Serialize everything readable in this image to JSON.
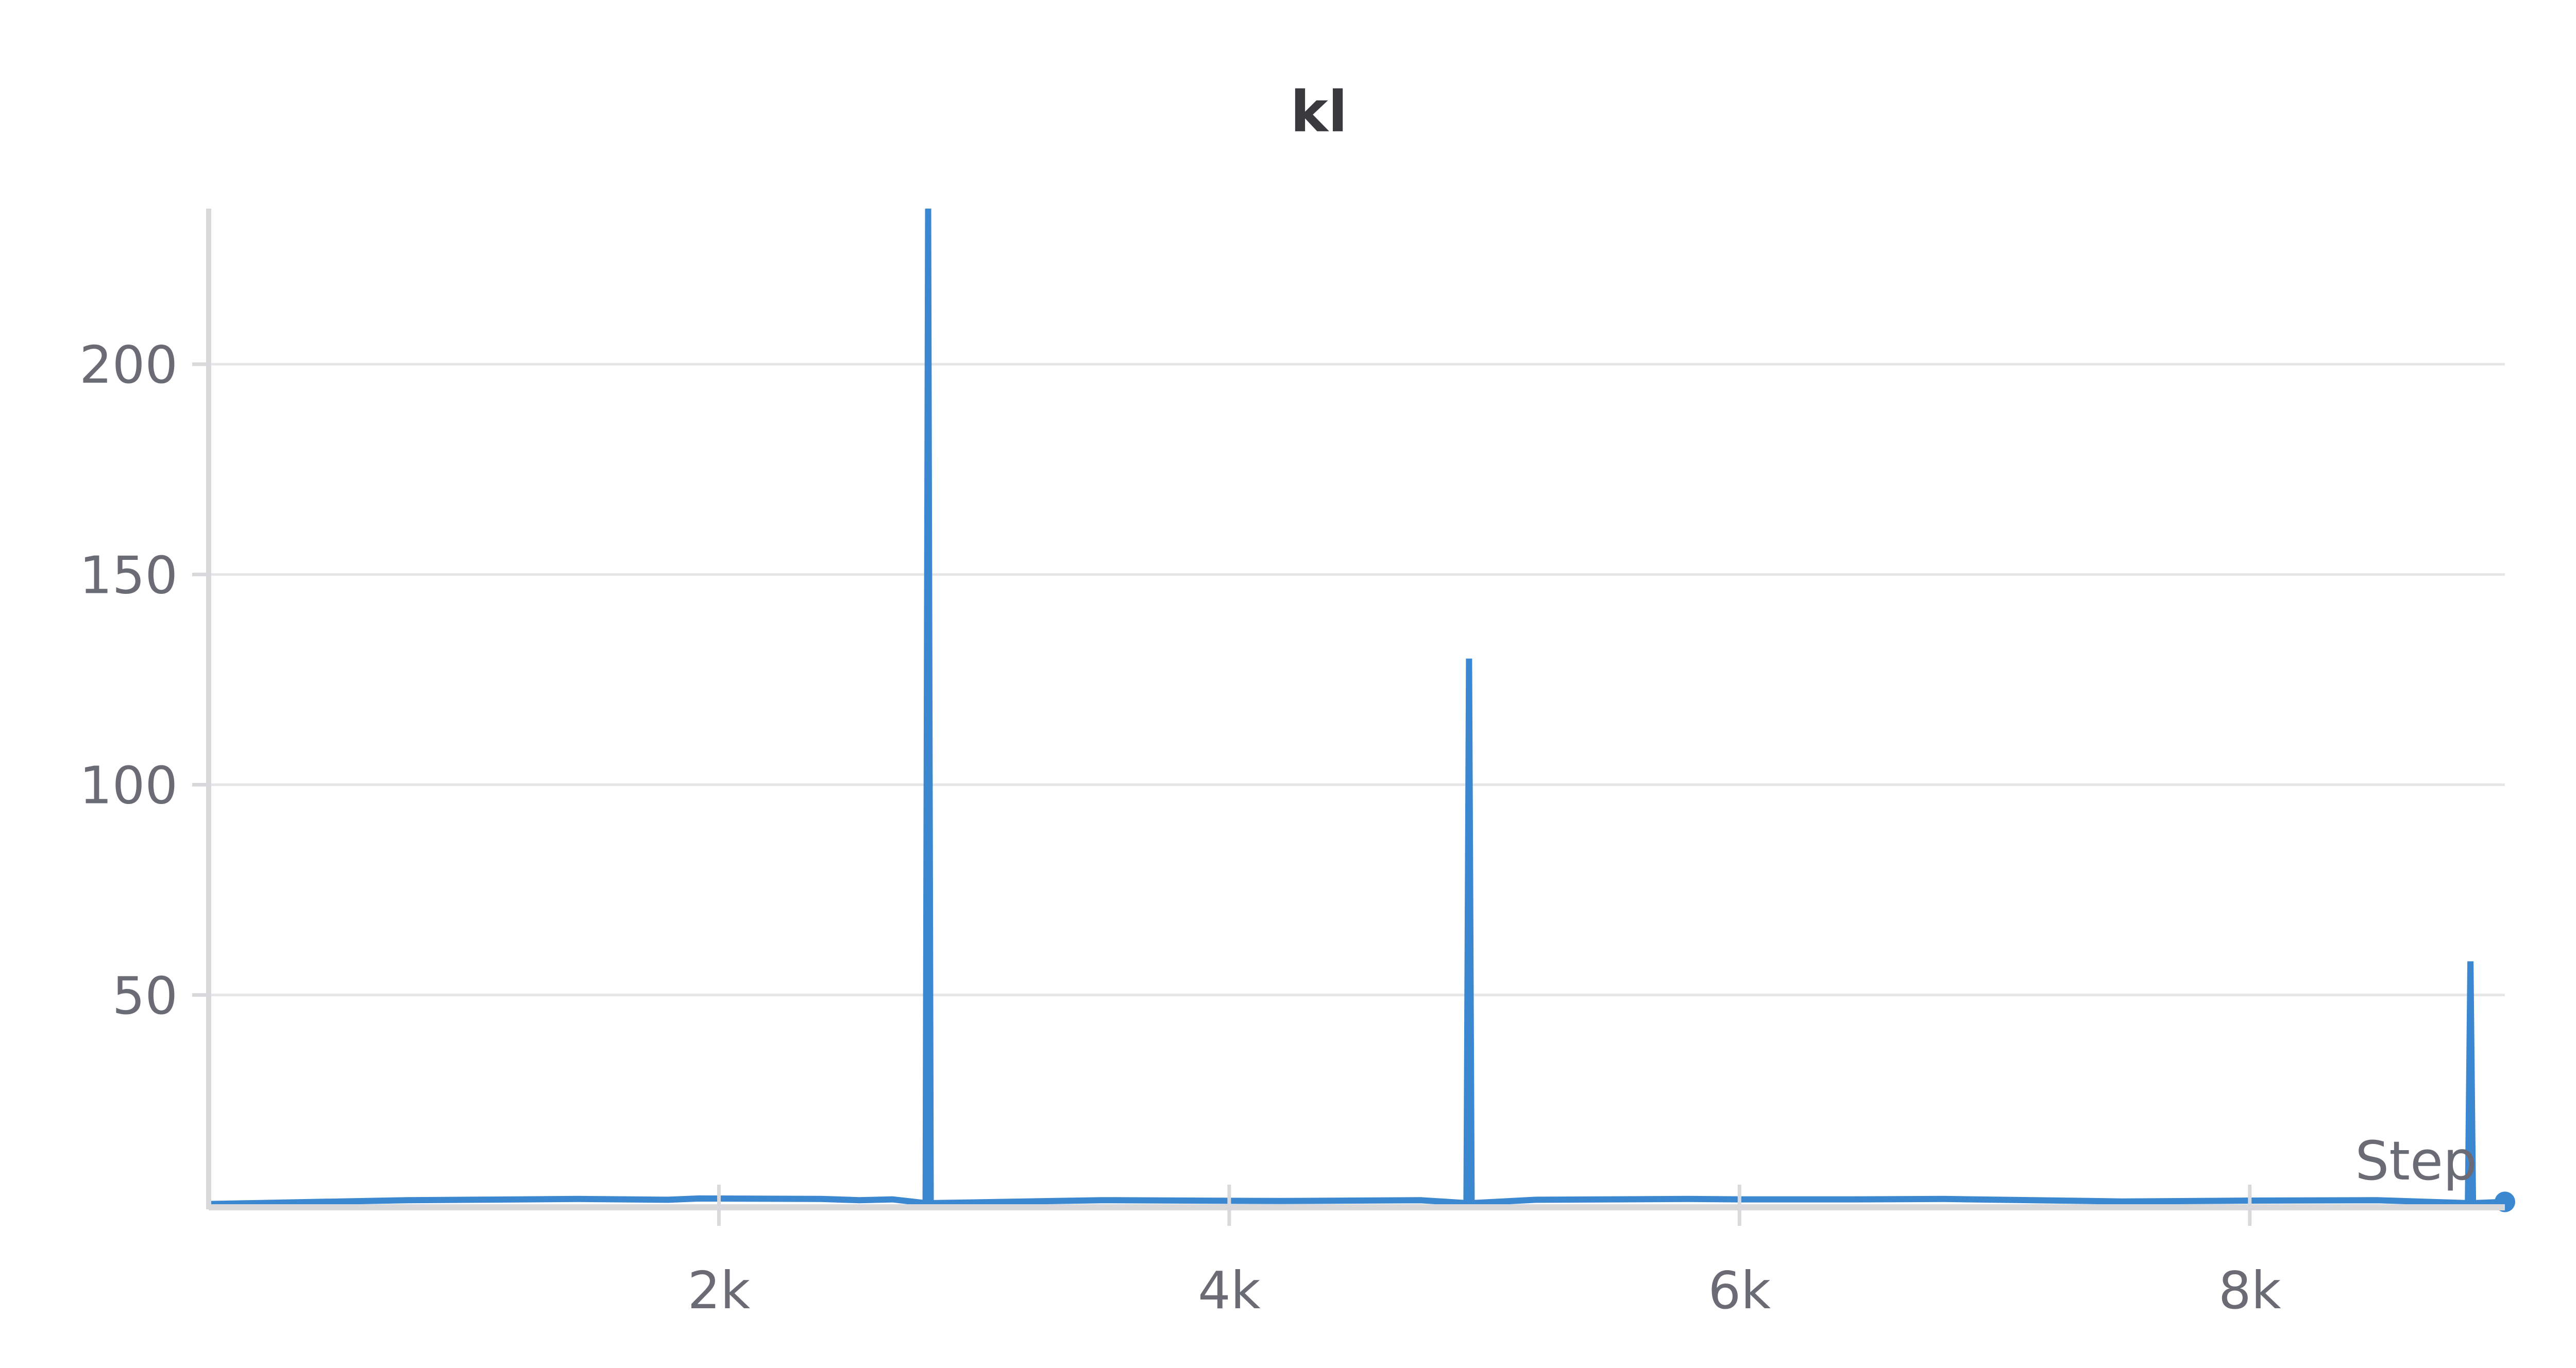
{
  "chart_data": {
    "type": "line",
    "title": "kl",
    "xlabel": "Step",
    "ylabel": "",
    "xlim": [
      0,
      9000
    ],
    "ylim": [
      0,
      237
    ],
    "x_ticks": [
      {
        "value": 2000,
        "label": "2k"
      },
      {
        "value": 4000,
        "label": "4k"
      },
      {
        "value": 6000,
        "label": "6k"
      },
      {
        "value": 8000,
        "label": "8k"
      }
    ],
    "y_ticks": [
      {
        "value": 50,
        "label": "50"
      },
      {
        "value": 100,
        "label": "100"
      },
      {
        "value": 150,
        "label": "150"
      },
      {
        "value": 200,
        "label": "200"
      }
    ],
    "grid": true,
    "legend": "none",
    "colors": {
      "series": "#3b87d0",
      "grid": "#e6e6e9",
      "axis": "#d9d9dc",
      "tick_text": "#6b6b76",
      "title_text": "#3a3a3e"
    },
    "series": [
      {
        "x": [
          0,
          780,
          1450,
          1800,
          1920,
          2400,
          2550,
          2680,
          2810,
          2820,
          2830,
          3500,
          4200,
          4750,
          4930,
          4940,
          4950,
          5200,
          5800,
          6000,
          6450,
          6800,
          7500,
          8000,
          8500,
          8855,
          8865,
          8875,
          9000
        ],
        "y": [
          0.3,
          1.2,
          1.5,
          1.3,
          1.6,
          1.5,
          1.2,
          1.4,
          0.5,
          237,
          0.5,
          1.2,
          1.0,
          1.2,
          0.5,
          130,
          0.5,
          1.3,
          1.5,
          1.4,
          1.4,
          1.5,
          0.9,
          1.1,
          1.2,
          0.5,
          58,
          0.5,
          0.8
        ]
      }
    ]
  }
}
